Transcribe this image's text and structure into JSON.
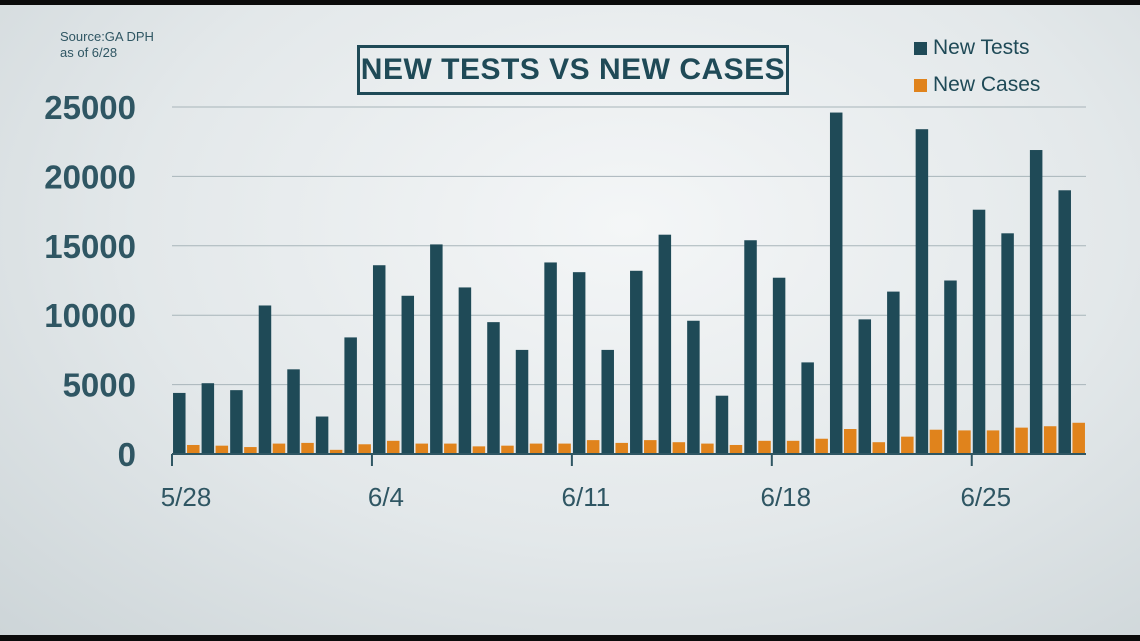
{
  "source_note": "Source:GA DPH",
  "date_note": "as of 6/28",
  "colors": {
    "tests": "#1f4a57",
    "cases": "#e0831c",
    "grid": "#a8b5ba",
    "axis": "#2f5663"
  },
  "chart_data": {
    "type": "bar",
    "title": "NEW TESTS VS NEW CASES",
    "xlabel": "",
    "ylabel": "",
    "ylim": [
      0,
      25000
    ],
    "yticks": [
      0,
      5000,
      10000,
      15000,
      20000,
      25000
    ],
    "ytick_labels": [
      "0",
      "5000",
      "10000",
      "15000",
      "20000",
      "25000"
    ],
    "xtick_labels": [
      "5/28",
      "6/4",
      "6/11",
      "6/18",
      "6/25"
    ],
    "xtick_dates": [
      "5/28",
      "6/4",
      "6/11",
      "6/18",
      "6/25"
    ],
    "grid": true,
    "legend_position": "top-right",
    "categories": [
      "5/28",
      "5/29",
      "5/30",
      "5/31",
      "6/1",
      "6/2",
      "6/3",
      "6/4",
      "6/5",
      "6/6",
      "6/7",
      "6/8",
      "6/9",
      "6/10",
      "6/11",
      "6/12",
      "6/13",
      "6/14",
      "6/15",
      "6/16",
      "6/17",
      "6/18",
      "6/19",
      "6/20",
      "6/21",
      "6/22",
      "6/23",
      "6/24",
      "6/25",
      "6/26",
      "6/27",
      "6/28"
    ],
    "series": [
      {
        "name": "New Tests",
        "values": [
          4400,
          5100,
          4600,
          10700,
          6100,
          2700,
          8400,
          13600,
          11400,
          15100,
          12000,
          9500,
          7500,
          13800,
          13100,
          7500,
          13200,
          15800,
          9600,
          4200,
          15400,
          12700,
          6600,
          24600,
          9700,
          11700,
          23400,
          12500,
          17600,
          15900,
          21900,
          19000
        ]
      },
      {
        "name": "New Cases",
        "values": [
          650,
          600,
          500,
          750,
          800,
          300,
          700,
          950,
          750,
          750,
          550,
          600,
          750,
          750,
          1000,
          800,
          1000,
          850,
          750,
          650,
          950,
          950,
          1100,
          1800,
          850,
          1250,
          1750,
          1700,
          1700,
          1900,
          2000,
          2250
        ]
      }
    ]
  }
}
